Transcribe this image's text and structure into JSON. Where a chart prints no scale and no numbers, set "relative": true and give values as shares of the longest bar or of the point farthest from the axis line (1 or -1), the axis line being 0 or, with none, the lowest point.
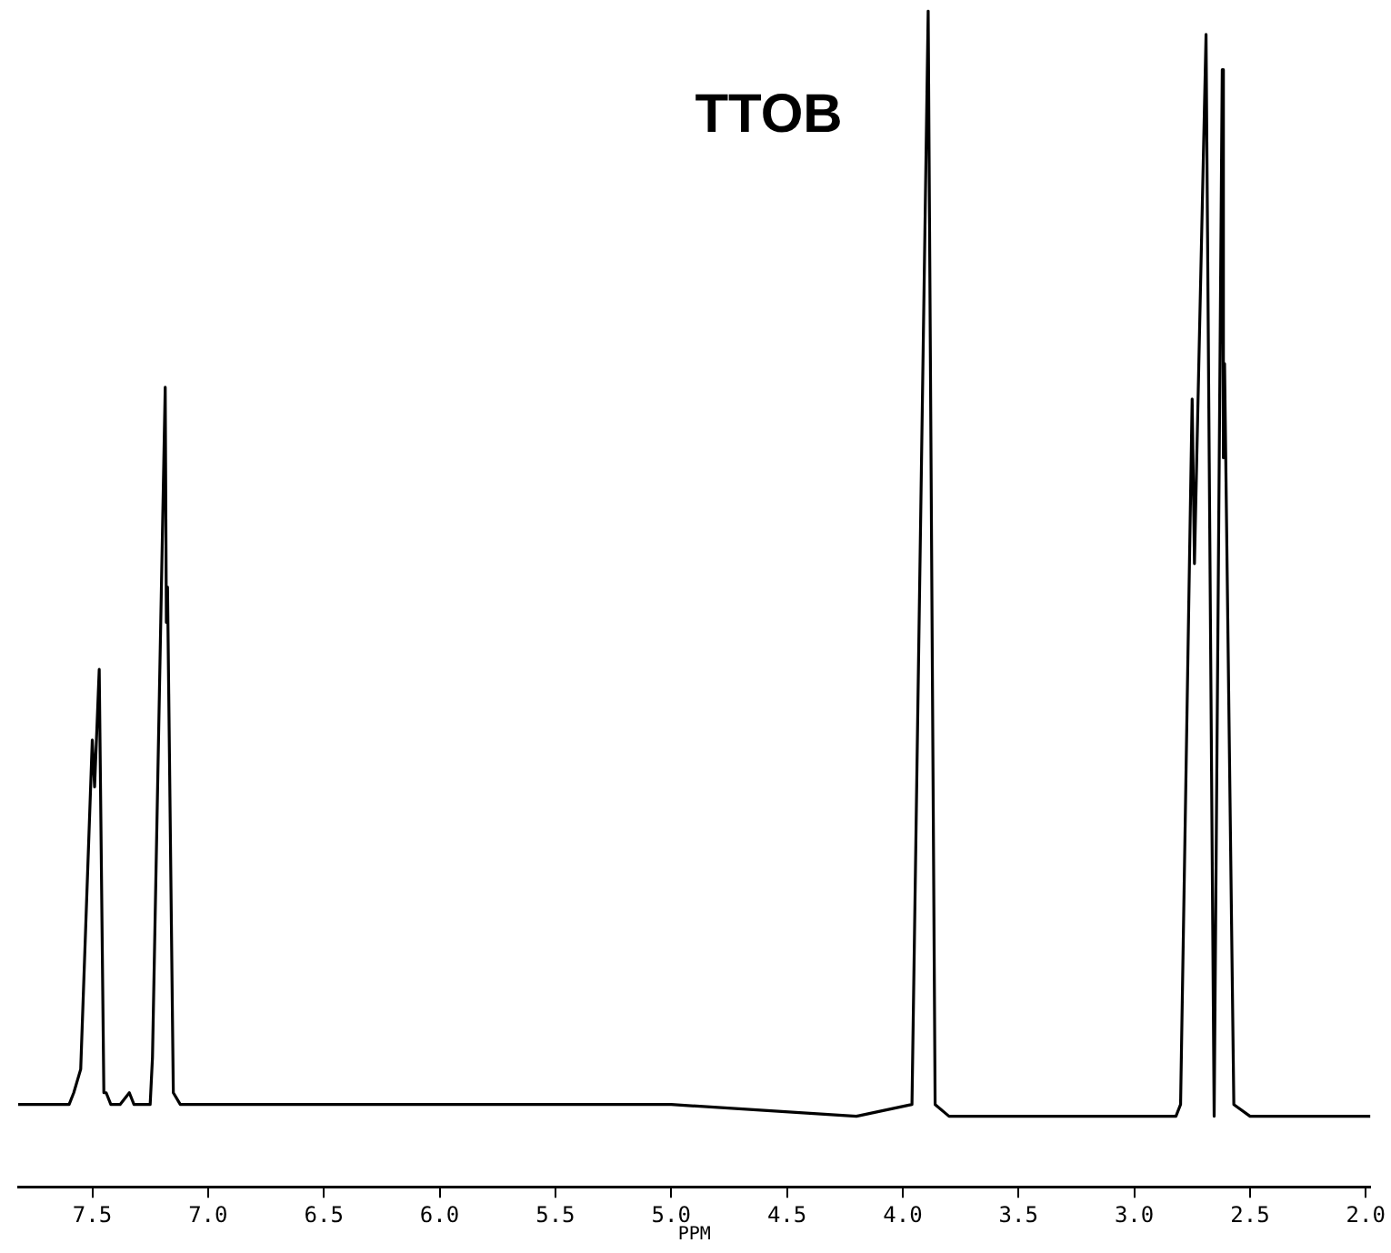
{
  "chart_data": {
    "type": "line",
    "title": "TTOB",
    "xlabel": "PPM",
    "relative": true,
    "color": "#000000",
    "grid": false,
    "legend": false,
    "marker": "none",
    "line_style": "solid",
    "xlim": [
      7.82,
      1.98
    ],
    "xticks": [
      {
        "value": 7.5,
        "label": "7.5"
      },
      {
        "value": 7.0,
        "label": "7.0"
      },
      {
        "value": 6.5,
        "label": "6.5"
      },
      {
        "value": 6.0,
        "label": "6.0"
      },
      {
        "value": 5.5,
        "label": "5.5"
      },
      {
        "value": 5.0,
        "label": "5.0"
      },
      {
        "value": 4.5,
        "label": "4.5"
      },
      {
        "value": 4.0,
        "label": "4.0"
      },
      {
        "value": 3.5,
        "label": "3.5"
      },
      {
        "value": 3.0,
        "label": "3.0"
      },
      {
        "value": 2.5,
        "label": "2.5"
      },
      {
        "value": 2.0,
        "label": "2.0"
      }
    ],
    "x": [
      7.82,
      7.6,
      7.58,
      7.55,
      7.5,
      7.49,
      7.47,
      7.45,
      7.44,
      7.42,
      7.38,
      7.34,
      7.32,
      7.25,
      7.24,
      7.185,
      7.18,
      7.175,
      7.15,
      7.12,
      6.0,
      5.0,
      4.2,
      3.96,
      3.89,
      3.86,
      3.8,
      3.0,
      2.82,
      2.8,
      2.75,
      2.74,
      2.69,
      2.655,
      2.62,
      2.615,
      2.61,
      2.57,
      2.5,
      2.2,
      1.98
    ],
    "values": [
      0.07,
      0.07,
      0.08,
      0.1,
      0.38,
      0.34,
      0.44,
      0.08,
      0.08,
      0.07,
      0.07,
      0.08,
      0.07,
      0.07,
      0.11,
      0.68,
      0.48,
      0.51,
      0.08,
      0.07,
      0.07,
      0.07,
      0.06,
      0.07,
      1.0,
      0.07,
      0.06,
      0.06,
      0.06,
      0.07,
      0.67,
      0.53,
      0.98,
      0.06,
      0.95,
      0.62,
      0.7,
      0.07,
      0.06,
      0.06,
      0.06
    ]
  }
}
